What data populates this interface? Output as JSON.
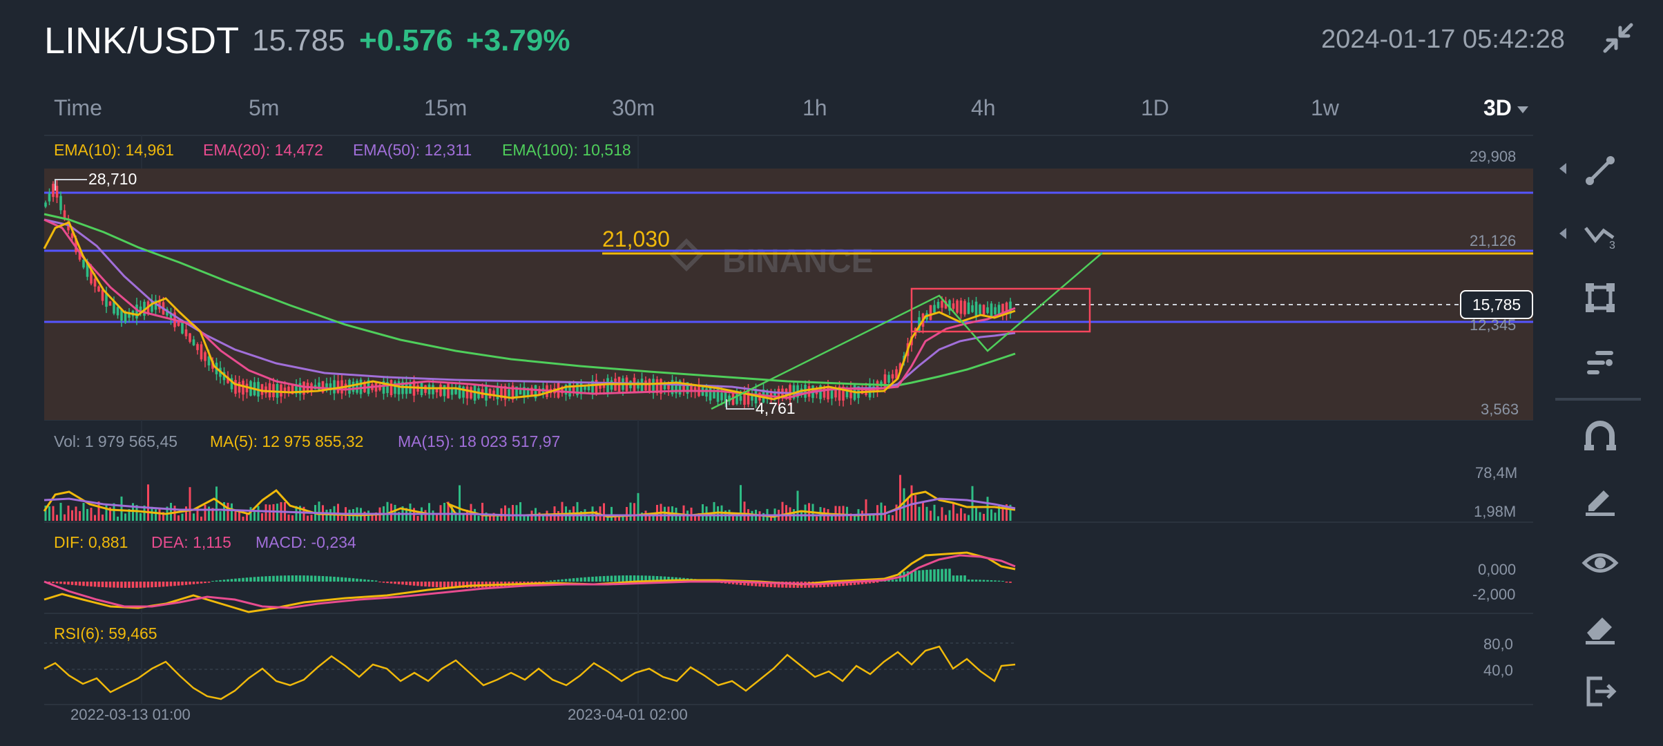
{
  "header": {
    "pair": "LINK/USDT",
    "price": "15.785",
    "change": "+0.576",
    "change_pct": "+3.79%",
    "datetime": "2024-01-17 05:42:28"
  },
  "timeframes": [
    "Time",
    "5m",
    "15m",
    "30m",
    "1h",
    "4h",
    "1D",
    "1w",
    "3D"
  ],
  "active_timeframe": "3D",
  "main_chart": {
    "legend": {
      "ema10": "EMA(10): 14,961",
      "ema20": "EMA(20): 14,472",
      "ema50": "EMA(50): 12,311",
      "ema100": "EMA(100): 10,518"
    },
    "y_labels": {
      "top": "29,908",
      "upper": "21,126",
      "lower": "12,345",
      "bottom": "3,563"
    },
    "high_label": "28,710",
    "low_label": "4,761",
    "level_label": "21,030",
    "current_price_badge": "15,785",
    "watermark": "BINANCE"
  },
  "volume_panel": {
    "vol": "Vol: 1 979 565,45",
    "ma5": "MA(5): 12 975 855,32",
    "ma15": "MA(15): 18 023 517,97",
    "y_top": "78,4M",
    "y_bottom": "1,98M"
  },
  "macd_panel": {
    "dif": "DIF: 0,881",
    "dea": "DEA: 1,115",
    "macd": "MACD: -0,234",
    "y_top": "0,000",
    "y_bottom": "-2,000"
  },
  "rsi_panel": {
    "rsi": "RSI(6): 59,465",
    "y_top": "80,0",
    "y_bottom": "40,0"
  },
  "x_axis": {
    "left": "2022-03-13 01:00",
    "right": "2023-04-01 02:00"
  },
  "tools": [
    "trend-line-icon",
    "multi-line-icon",
    "rectangle-icon",
    "fib-icon",
    "magnet-icon",
    "pencil-icon",
    "eye-icon",
    "eraser-icon",
    "exit-icon"
  ],
  "colors": {
    "background": "#1f2630",
    "up": "#2ebd85",
    "down": "#f6465d",
    "ema10": "#f0b90b",
    "ema20": "#e84c8f",
    "ema50": "#a16fd9",
    "ema100": "#4fcf5b",
    "level_line": "#5555ff"
  }
}
